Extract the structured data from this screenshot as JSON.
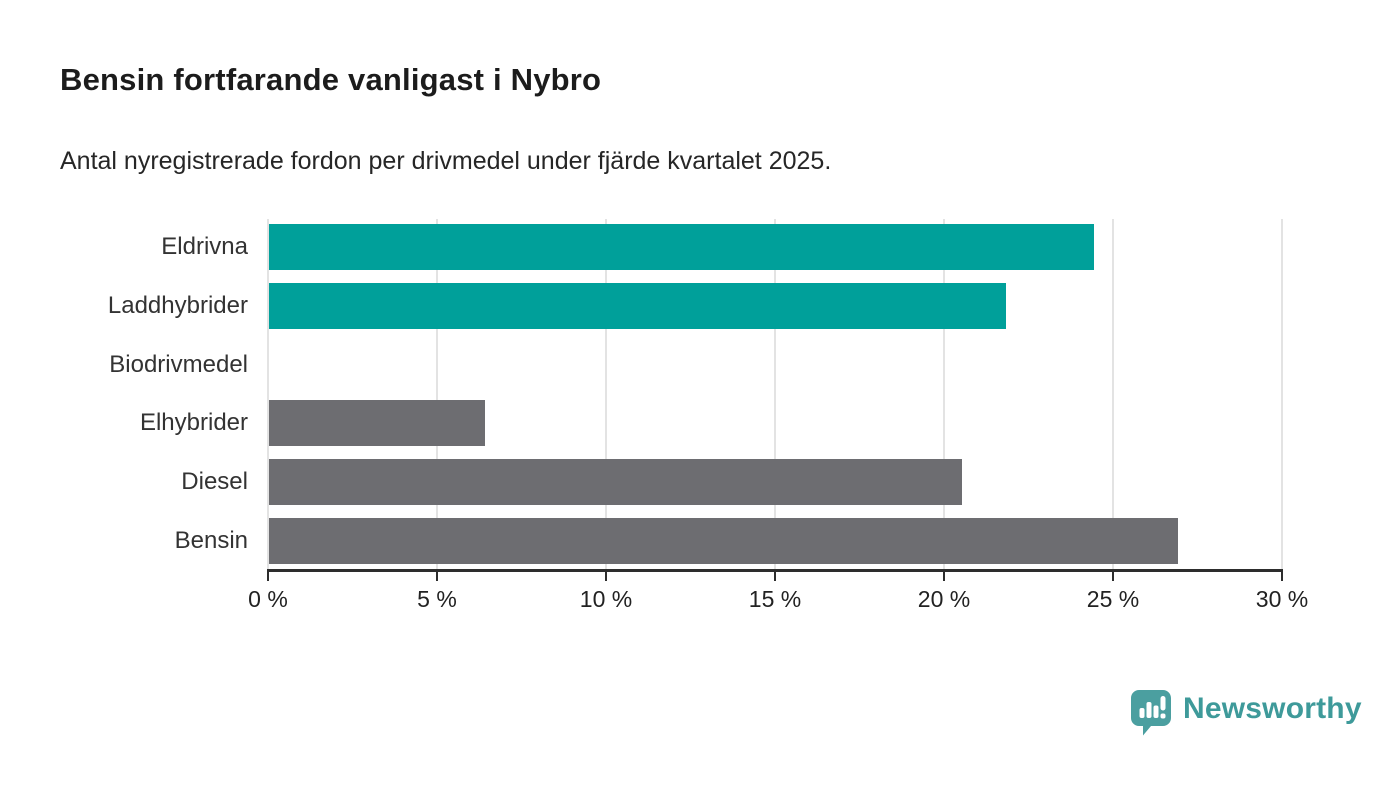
{
  "chart_data": {
    "type": "bar",
    "orientation": "horizontal",
    "title": "Bensin fortfarande vanligast i Nybro",
    "subtitle": "Antal nyregistrerade fordon per drivmedel under fjärde kvartalet 2025.",
    "categories": [
      "Eldrivna",
      "Laddhybrider",
      "Biodrivmedel",
      "Elhybrider",
      "Diesel",
      "Bensin"
    ],
    "values": [
      24.4,
      21.8,
      0,
      6.4,
      20.5,
      26.9
    ],
    "unit": "%",
    "series_colors": {
      "highlight": "#00a09a",
      "default": "#6d6d71"
    },
    "bar_color_roles": [
      "highlight",
      "highlight",
      "default",
      "default",
      "default",
      "default"
    ],
    "xlim": [
      0,
      30
    ],
    "x_ticks": [
      0,
      5,
      10,
      15,
      20,
      25,
      30
    ],
    "x_tick_labels": [
      "0 %",
      "5 %",
      "10 %",
      "15 %",
      "20 %",
      "25 %",
      "30 %"
    ],
    "grid": true,
    "legend": false,
    "xlabel": "",
    "ylabel": ""
  },
  "footer": {
    "brand": "Newsworthy",
    "brand_color": "#3e9a9a",
    "icon": "newsworthy-logo-icon",
    "icon_color": "#4b9fa0"
  },
  "colors": {
    "background": "#ffffff",
    "title_text": "#1c1c1c",
    "subtitle_text": "#262626",
    "axis_line": "#2d2d2d",
    "gridline": "#e3e3e3",
    "tick_label": "#222222",
    "category_label": "#333333"
  }
}
